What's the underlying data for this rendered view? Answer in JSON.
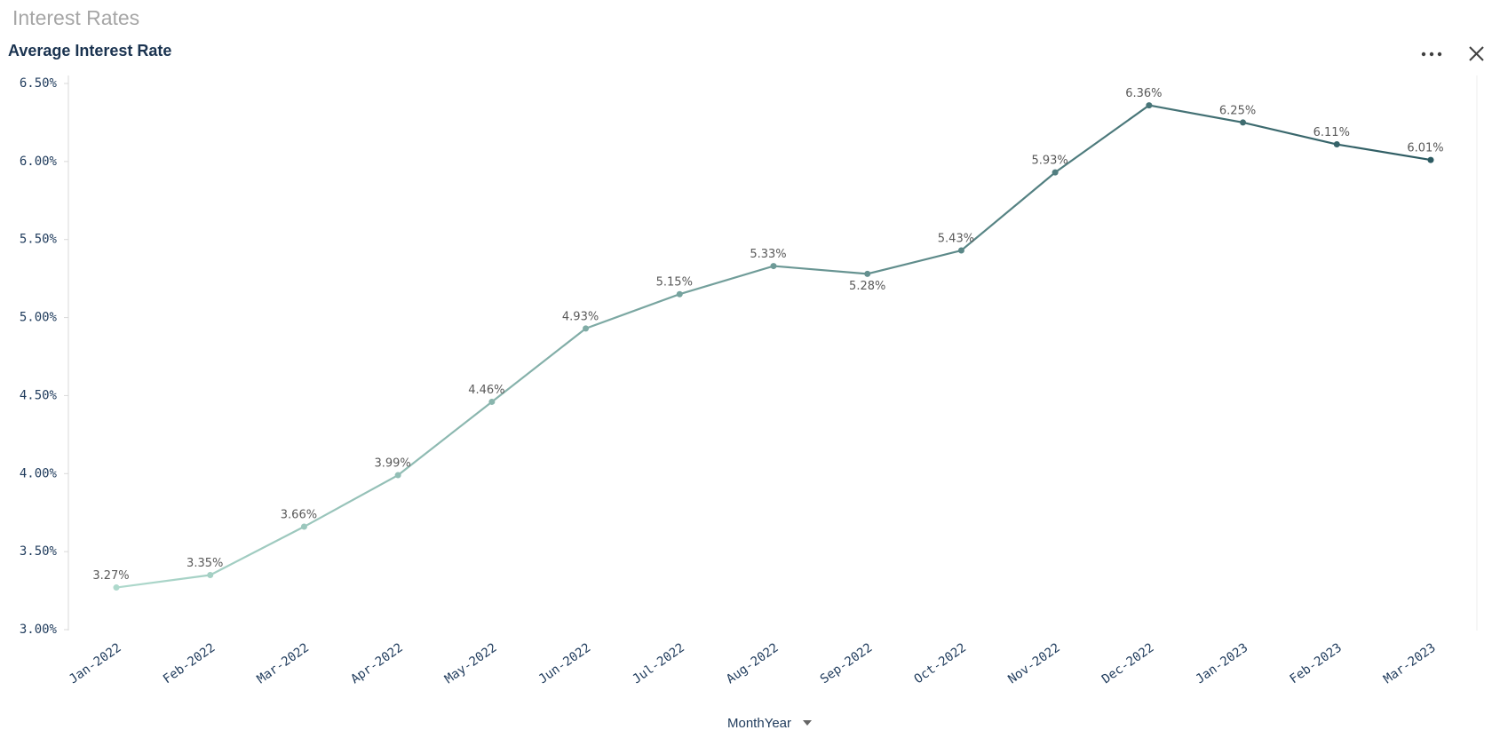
{
  "header": {
    "title": "Interest Rates"
  },
  "chart_data": {
    "type": "line",
    "title": "Average Interest Rate",
    "categories": [
      "Jan-2022",
      "Feb-2022",
      "Mar-2022",
      "Apr-2022",
      "May-2022",
      "Jun-2022",
      "Jul-2022",
      "Aug-2022",
      "Sep-2022",
      "Oct-2022",
      "Nov-2022",
      "Dec-2022",
      "Jan-2023",
      "Feb-2023",
      "Mar-2023"
    ],
    "values": [
      3.27,
      3.35,
      3.66,
      3.99,
      4.46,
      4.93,
      5.15,
      5.33,
      5.28,
      5.43,
      5.93,
      6.36,
      6.25,
      6.11,
      6.01
    ],
    "value_labels": [
      "3.27%",
      "3.35%",
      "3.66%",
      "3.99%",
      "4.46%",
      "4.93%",
      "5.15%",
      "5.33%",
      "5.28%",
      "5.43%",
      "5.93%",
      "6.36%",
      "6.25%",
      "6.11%",
      "6.01%"
    ],
    "color_range": [
      "#aed9cc",
      "#2c5a61"
    ],
    "ylim": [
      3.0,
      6.5
    ],
    "yticks": [
      {
        "value": 3.0,
        "label": "3.00%"
      },
      {
        "value": 3.5,
        "label": "3.50%"
      },
      {
        "value": 4.0,
        "label": "4.00%"
      },
      {
        "value": 4.5,
        "label": "4.50%"
      },
      {
        "value": 5.0,
        "label": "5.00%"
      },
      {
        "value": 5.5,
        "label": "5.50%"
      },
      {
        "value": 6.0,
        "label": "6.00%"
      },
      {
        "value": 6.5,
        "label": "6.50%"
      }
    ],
    "xlabel": "MonthYear"
  }
}
